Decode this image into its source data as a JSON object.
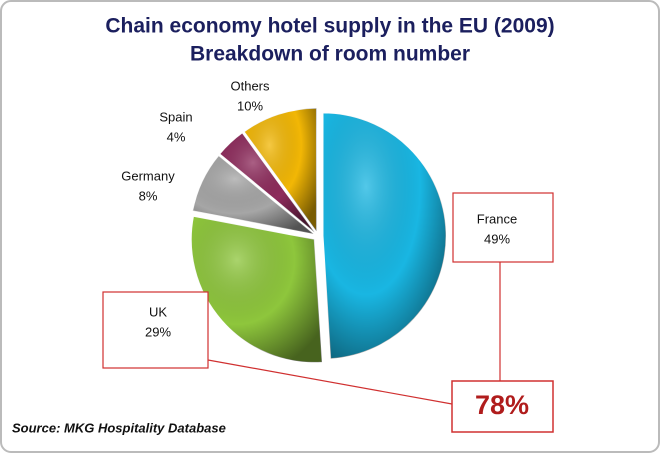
{
  "chart_data": {
    "type": "pie",
    "title": "Chain economy hotel supply in the EU (2009)",
    "subtitle": "Breakdown of room number",
    "categories": [
      "France",
      "UK",
      "Germany",
      "Spain",
      "Others"
    ],
    "values": [
      49,
      29,
      8,
      4,
      10
    ],
    "value_labels": [
      "49%",
      "29%",
      "8%",
      "4%",
      "10%"
    ],
    "colors": [
      "#19b6e2",
      "#8ec63c",
      "#a6a6a6",
      "#8e2b5c",
      "#f2b705"
    ],
    "annotation": "78%",
    "source": "Source: MKG Hospitality Database"
  }
}
